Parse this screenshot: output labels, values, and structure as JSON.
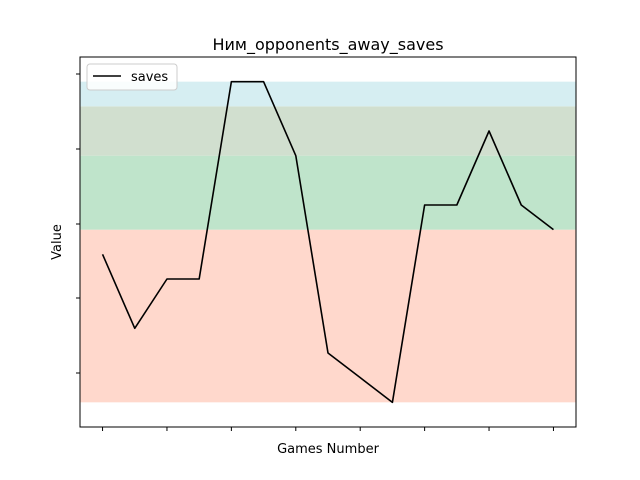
{
  "chart_data": {
    "type": "line",
    "title": "Ним_opponents_away_saves",
    "xlabel": "Games Number",
    "ylabel": "Value",
    "x": [
      1,
      2,
      3,
      4,
      5,
      6,
      7,
      8,
      9,
      10,
      11,
      12,
      13,
      14,
      15
    ],
    "series": [
      {
        "name": "saves",
        "values": [
          3.5,
          2.0,
          3.0,
          3.0,
          7.0,
          7.0,
          5.5,
          1.5,
          1.0,
          0.5,
          4.5,
          4.5,
          6.0,
          4.5,
          4.0
        ],
        "color": "#000000"
      }
    ],
    "ylim": [
      0.0,
      7.5
    ],
    "xlim": [
      0.3,
      15.7
    ],
    "x_ticks": [
      1,
      3,
      5,
      7,
      9,
      11,
      13,
      15
    ],
    "y_ticks": [
      1,
      3,
      5,
      7,
      9
    ],
    "tick_labels_visible": false,
    "bands": [
      {
        "from": 0.5,
        "to": 4.0,
        "color": "#ffd8cc"
      },
      {
        "from": 4.0,
        "to": 5.5,
        "color": "#bfe4cb"
      },
      {
        "from": 5.5,
        "to": 6.5,
        "color": "#d1dfcf"
      },
      {
        "from": 6.5,
        "to": 7.0,
        "color": "#d6eef2"
      }
    ],
    "grid": false,
    "legend_position": "top-left"
  }
}
